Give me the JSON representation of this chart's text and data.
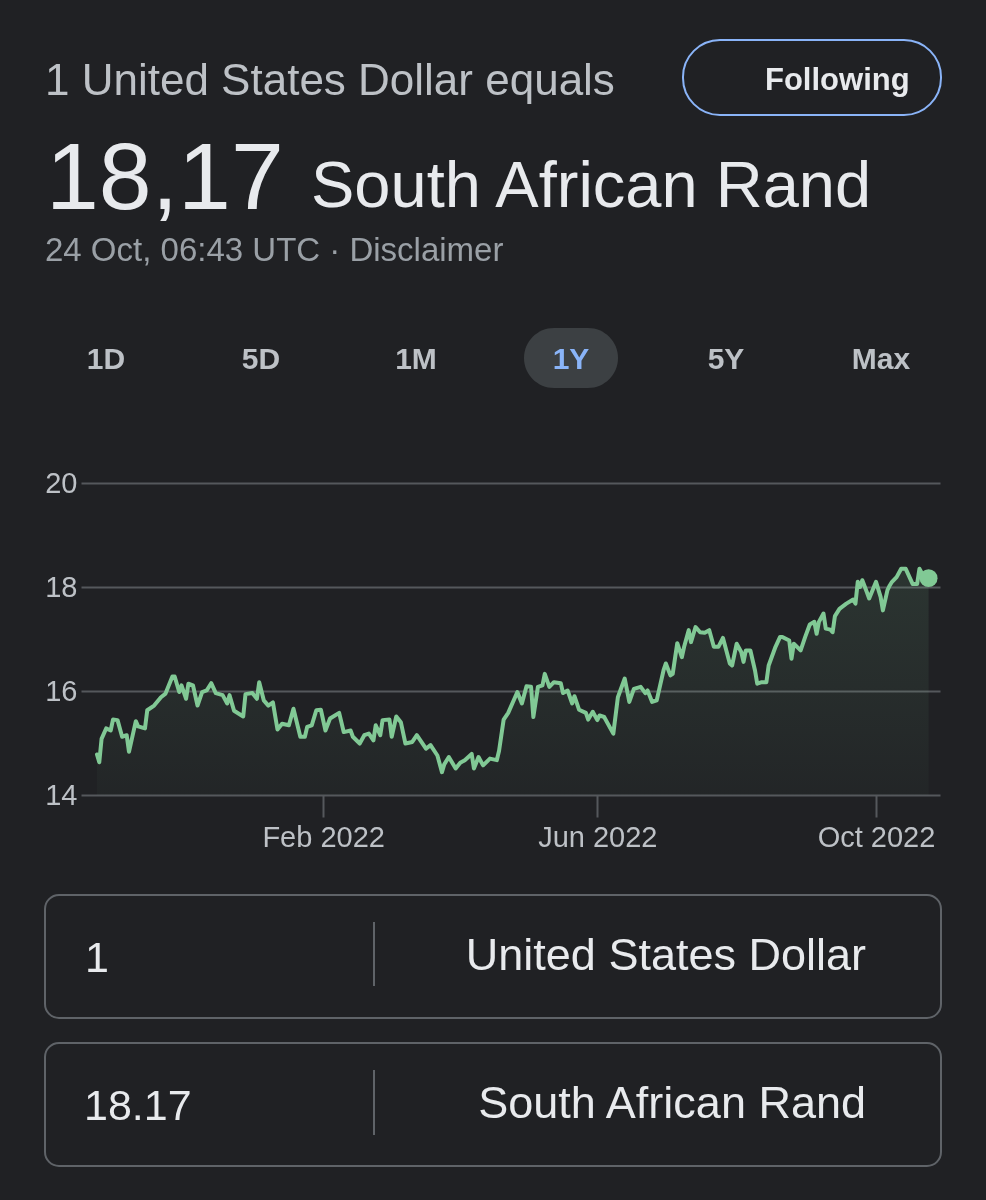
{
  "chart_data": {
    "type": "area",
    "title": "1 United States Dollar equals",
    "subtitle": "24 Oct, 06:43 UTC · Disclaimer",
    "annotations": [
      "18,17",
      "South African Rand",
      "Following",
      "1D",
      "5D",
      "1M",
      "1Y",
      "5Y",
      "Max",
      "1",
      "United States Dollar",
      "18.17",
      "South African Rand"
    ],
    "xlim": [
      "2021-10-18",
      "2022-10-29"
    ],
    "xticks": [
      {
        "value": "2022-02-01",
        "label": "Feb 2022"
      },
      {
        "value": "2022-06-01",
        "label": "Jun 2022"
      },
      {
        "value": "2022-10-01",
        "label": "Oct 2022"
      }
    ],
    "ylim": [
      14,
      20
    ],
    "yticks": [
      14,
      16,
      18,
      20
    ],
    "grid": "y",
    "series": [
      {
        "color": "#81c995",
        "x": [
          "2021-10-25",
          "2021-10-26",
          "2021-10-27",
          "2021-10-29",
          "2021-10-31",
          "2021-11-01",
          "2021-11-03",
          "2021-11-05",
          "2021-11-07",
          "2021-11-08",
          "2021-11-11",
          "2021-11-12",
          "2021-11-15",
          "2021-11-16",
          "2021-11-19",
          "2021-11-22",
          "2021-11-24",
          "2021-11-27",
          "2021-11-28",
          "2021-11-30",
          "2021-12-01",
          "2021-12-03",
          "2021-12-04",
          "2021-12-06",
          "2021-12-08",
          "2021-12-10",
          "2021-12-12",
          "2021-12-14",
          "2021-12-16",
          "2021-12-19",
          "2021-12-21",
          "2021-12-22",
          "2021-12-24",
          "2021-12-28",
          "2021-12-29",
          "2022-01-01",
          "2022-01-03",
          "2022-01-04",
          "2022-01-06",
          "2022-01-08",
          "2022-01-10",
          "2022-01-12",
          "2022-01-14",
          "2022-01-17",
          "2022-01-19",
          "2022-01-22",
          "2022-01-24",
          "2022-01-25",
          "2022-01-27",
          "2022-01-29",
          "2022-01-31",
          "2022-02-02",
          "2022-02-04",
          "2022-02-08",
          "2022-02-10",
          "2022-02-13",
          "2022-02-14",
          "2022-02-17",
          "2022-02-19",
          "2022-02-21",
          "2022-02-23",
          "2022-02-24",
          "2022-02-26",
          "2022-02-27",
          "2022-03-02",
          "2022-03-03",
          "2022-03-05",
          "2022-03-07",
          "2022-03-09",
          "2022-03-12",
          "2022-03-14",
          "2022-03-16",
          "2022-03-18",
          "2022-03-20",
          "2022-03-23",
          "2022-03-25",
          "2022-03-26",
          "2022-03-28",
          "2022-03-31",
          "2022-04-02",
          "2022-04-04",
          "2022-04-07",
          "2022-04-08",
          "2022-04-10",
          "2022-04-12",
          "2022-04-15",
          "2022-04-18",
          "2022-04-19",
          "2022-04-21",
          "2022-04-23",
          "2022-04-26",
          "2022-04-27",
          "2022-04-29",
          "2022-05-01",
          "2022-05-03",
          "2022-05-04",
          "2022-05-06",
          "2022-05-08",
          "2022-05-09",
          "2022-05-11",
          "2022-05-13",
          "2022-05-16",
          "2022-05-17",
          "2022-05-19",
          "2022-05-21",
          "2022-05-22",
          "2022-05-24",
          "2022-05-27",
          "2022-05-28",
          "2022-05-30",
          "2022-06-01",
          "2022-06-02",
          "2022-06-04",
          "2022-06-08",
          "2022-06-10",
          "2022-06-13",
          "2022-06-15",
          "2022-06-17",
          "2022-06-20",
          "2022-06-22",
          "2022-06-23",
          "2022-06-25",
          "2022-06-27",
          "2022-06-30",
          "2022-07-01",
          "2022-07-03",
          "2022-07-04",
          "2022-07-06",
          "2022-07-08",
          "2022-07-09",
          "2022-07-11",
          "2022-07-12",
          "2022-07-14",
          "2022-07-16",
          "2022-07-18",
          "2022-07-20",
          "2022-07-22",
          "2022-07-24",
          "2022-07-26",
          "2022-07-29",
          "2022-07-30",
          "2022-08-01",
          "2022-08-03",
          "2022-08-04",
          "2022-08-05",
          "2022-08-07",
          "2022-08-09",
          "2022-08-10",
          "2022-08-12",
          "2022-08-14",
          "2022-08-15",
          "2022-08-18",
          "2022-08-20",
          "2022-08-21",
          "2022-08-24",
          "2022-08-25",
          "2022-08-26",
          "2022-08-29",
          "2022-08-31",
          "2022-09-02",
          "2022-09-04",
          "2022-09-05",
          "2022-09-06",
          "2022-09-08",
          "2022-09-09",
          "2022-09-11",
          "2022-09-12",
          "2022-09-13",
          "2022-09-15",
          "2022-09-18",
          "2022-09-21",
          "2022-09-22",
          "2022-09-23",
          "2022-09-24",
          "2022-09-25",
          "2022-09-27",
          "2022-09-28",
          "2022-10-01",
          "2022-10-03",
          "2022-10-04",
          "2022-10-06",
          "2022-10-07",
          "2022-10-08",
          "2022-10-10",
          "2022-10-12",
          "2022-10-14",
          "2022-10-17",
          "2022-10-19",
          "2022-10-20",
          "2022-10-22",
          "2022-10-24"
        ],
        "values": [
          14.78,
          14.63,
          15.08,
          15.28,
          15.24,
          15.45,
          15.44,
          15.12,
          15.15,
          14.83,
          15.42,
          15.32,
          15.28,
          15.63,
          15.72,
          15.88,
          15.95,
          16.28,
          16.28,
          15.98,
          16.11,
          15.85,
          16.14,
          16.11,
          15.72,
          15.98,
          16.01,
          16.15,
          15.96,
          15.92,
          15.76,
          15.92,
          15.62,
          15.51,
          15.94,
          15.96,
          15.85,
          16.17,
          15.82,
          15.72,
          15.78,
          15.26,
          15.37,
          15.34,
          15.66,
          15.12,
          15.12,
          15.31,
          15.34,
          15.63,
          15.64,
          15.24,
          15.47,
          15.58,
          15.21,
          15.24,
          15.12,
          14.99,
          15.15,
          15.18,
          15.05,
          15.34,
          15.15,
          15.44,
          15.45,
          15.12,
          15.51,
          15.4,
          14.99,
          15.02,
          15.15,
          15.02,
          14.89,
          14.96,
          14.76,
          14.44,
          14.59,
          14.73,
          14.51,
          14.62,
          14.67,
          14.79,
          14.51,
          14.73,
          14.57,
          14.7,
          14.67,
          14.85,
          15.45,
          15.58,
          15.88,
          15.98,
          15.76,
          16.09,
          16.08,
          15.5,
          16.08,
          16.11,
          16.33,
          16.08,
          16.17,
          16.15,
          15.96,
          16.01,
          15.76,
          15.9,
          15.64,
          15.58,
          15.45,
          15.6,
          15.44,
          15.53,
          15.5,
          15.18,
          15.88,
          16.24,
          15.79,
          16.04,
          16.08,
          15.96,
          16.01,
          15.79,
          15.82,
          16.4,
          16.53,
          16.3,
          16.33,
          16.92,
          16.65,
          16.85,
          17.17,
          16.94,
          17.23,
          17.13,
          17.12,
          17.17,
          16.85,
          16.85,
          17.02,
          16.53,
          16.49,
          16.91,
          16.75,
          16.56,
          16.78,
          16.78,
          16.4,
          16.14,
          16.17,
          16.17,
          16.49,
          16.85,
          17.04,
          17.04,
          16.97,
          16.62,
          16.91,
          16.78,
          17.04,
          17.28,
          17.33,
          17.1,
          17.33,
          17.49,
          17.2,
          17.18,
          17.13,
          17.44,
          17.58,
          17.68,
          17.76,
          17.68,
          18.1,
          18.0,
          18.13,
          17.9,
          17.78,
          18.1,
          17.81,
          17.55,
          17.94,
          18.03,
          18.1,
          18.19,
          18.35,
          18.35,
          18.06,
          18.06,
          18.35,
          18.19,
          18.17
        ]
      },
      {
        "type": "scatter",
        "color": "#81c995",
        "marker": "circle",
        "x": [
          "2022-10-24"
        ],
        "values": [
          18.17
        ]
      }
    ]
  }
}
